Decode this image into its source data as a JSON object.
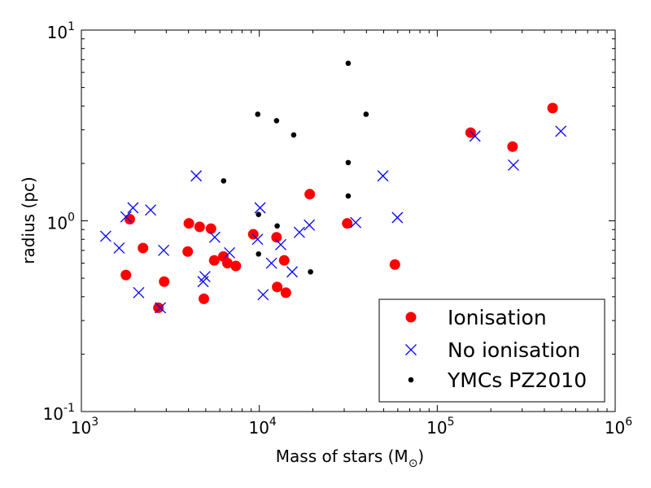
{
  "chart_data": {
    "type": "scatter",
    "xlabel": "Mass of stars (M",
    "xlabel_sub": "⊙",
    "xlabel_close": ")",
    "ylabel": "radius (pc)",
    "x_scale": "log",
    "y_scale": "log",
    "xlim": [
      1000,
      1000000
    ],
    "ylim": [
      0.1,
      10
    ],
    "x_ticks": [
      {
        "value": 1000,
        "base": "10",
        "exp": "3"
      },
      {
        "value": 10000,
        "base": "10",
        "exp": "4"
      },
      {
        "value": 100000,
        "base": "10",
        "exp": "5"
      },
      {
        "value": 1000000,
        "base": "10",
        "exp": "6"
      }
    ],
    "y_ticks": [
      {
        "value": 0.1,
        "base": "10",
        "exp": "-1"
      },
      {
        "value": 1,
        "base": "10",
        "exp": "0"
      },
      {
        "value": 10,
        "base": "10",
        "exp": "1"
      }
    ],
    "grid": false,
    "legend_position": "lower-right",
    "series": [
      {
        "name": "Ionisation",
        "marker": "circle",
        "color": "#ff0000",
        "points": [
          [
            1780,
            0.52
          ],
          [
            1870,
            1.02
          ],
          [
            2220,
            0.72
          ],
          [
            2710,
            0.35
          ],
          [
            2920,
            0.48
          ],
          [
            3960,
            0.69
          ],
          [
            4020,
            0.97
          ],
          [
            4620,
            0.93
          ],
          [
            4880,
            0.39
          ],
          [
            5350,
            0.91
          ],
          [
            5580,
            0.62
          ],
          [
            6280,
            0.65
          ],
          [
            6620,
            0.6
          ],
          [
            7380,
            0.58
          ],
          [
            9250,
            0.85
          ],
          [
            12500,
            0.82
          ],
          [
            12600,
            0.45
          ],
          [
            13800,
            0.62
          ],
          [
            14100,
            0.42
          ],
          [
            19200,
            1.38
          ],
          [
            31200,
            0.97
          ],
          [
            57800,
            0.59
          ],
          [
            154000,
            2.9
          ],
          [
            265000,
            2.45
          ],
          [
            445000,
            3.9
          ]
        ]
      },
      {
        "name": "No ionisation",
        "marker": "x",
        "color": "#0000ff",
        "points": [
          [
            1370,
            0.83
          ],
          [
            1630,
            0.72
          ],
          [
            1780,
            1.05
          ],
          [
            1950,
            1.17
          ],
          [
            2100,
            0.42
          ],
          [
            2450,
            1.14
          ],
          [
            2780,
            0.35
          ],
          [
            2900,
            0.7
          ],
          [
            4420,
            1.72
          ],
          [
            4830,
            0.48
          ],
          [
            4950,
            0.51
          ],
          [
            5620,
            0.82
          ],
          [
            6800,
            0.68
          ],
          [
            9780,
            0.8
          ],
          [
            10100,
            1.17
          ],
          [
            10500,
            0.41
          ],
          [
            11700,
            0.6
          ],
          [
            13200,
            0.75
          ],
          [
            15300,
            0.54
          ],
          [
            16800,
            0.87
          ],
          [
            19100,
            0.95
          ],
          [
            34800,
            0.98
          ],
          [
            49500,
            1.72
          ],
          [
            59700,
            1.04
          ],
          [
            163000,
            2.78
          ],
          [
            268000,
            1.96
          ],
          [
            495000,
            2.95
          ]
        ]
      },
      {
        "name": "YMCs PZ2010",
        "marker": "dot",
        "color": "#000000",
        "points": [
          [
            6300,
            1.62
          ],
          [
            9800,
            3.62
          ],
          [
            9900,
            1.08
          ],
          [
            9900,
            0.67
          ],
          [
            12500,
            3.35
          ],
          [
            12600,
            0.94
          ],
          [
            15600,
            2.82
          ],
          [
            19400,
            0.54
          ],
          [
            31600,
            6.7
          ],
          [
            31600,
            2.02
          ],
          [
            31600,
            1.35
          ],
          [
            39800,
            3.62
          ]
        ]
      }
    ]
  }
}
